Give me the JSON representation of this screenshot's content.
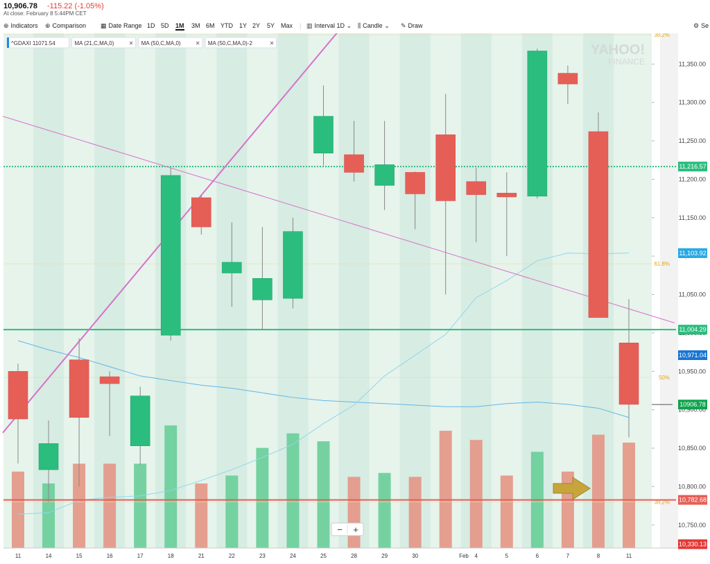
{
  "header": {
    "price": "10,906.78",
    "change": "-115.22 (-1.05%)",
    "close_note": "At close: February 8 5:44PM CET"
  },
  "toolbar": {
    "indicators": "Indicators",
    "comparison": "Comparison",
    "date_range": "Date Range",
    "ranges": [
      "1D",
      "5D",
      "1M",
      "3M",
      "6M",
      "YTD",
      "1Y",
      "2Y",
      "5Y",
      "Max"
    ],
    "selected_range": "1M",
    "interval_label": "Interval",
    "interval_value": "1D",
    "chart_type": "Candle",
    "draw": "Draw",
    "settings": "Se"
  },
  "legend": {
    "ticker": "^GDAXI 11071.54",
    "studies": [
      "MA (21,C,MA,0)",
      "MA (50,C,MA,0)",
      "MA (50,C,MA,0)-2"
    ]
  },
  "watermark": {
    "line1": "YAHOO!",
    "line2": "FINANCE"
  },
  "zoom": {
    "minus": "−",
    "plus": "+"
  },
  "colors": {
    "up": "#2bbd7e",
    "down": "#e55f57",
    "up_vol": "#6fd09c",
    "down_vol": "#e49a8a",
    "diag": "#d771c9",
    "ma1": "#64b5e8",
    "ma2": "#8fd8ea"
  },
  "chart_data": {
    "type": "candlestick",
    "x_labels": [
      "11",
      "14",
      "15",
      "16",
      "17",
      "18",
      "21",
      "22",
      "23",
      "24",
      "25",
      "28",
      "29",
      "30",
      "Feb",
      "4",
      "5",
      "6",
      "7",
      "8",
      "11"
    ],
    "ylim": [
      10720,
      11390
    ],
    "y_ticks": [
      10750,
      10800,
      10850,
      10900,
      10950,
      11000,
      11050,
      11100,
      11150,
      11200,
      11250,
      11300,
      11350
    ],
    "y_tick_labels": [
      "10,750.00",
      "10,800.00",
      "10,850.00",
      "10,900.00",
      "10,950.00",
      "11,000.00",
      "11,050.00",
      "11,100.00",
      "11,150.00",
      "11,200.00",
      "11,250.00",
      "11,300.00",
      "11,350.00"
    ],
    "candles": [
      {
        "x": 0,
        "open": 10950,
        "high": 10960,
        "low": 10830,
        "close": 10888
      },
      {
        "x": 1,
        "open": 10822,
        "high": 10886,
        "low": 10780,
        "close": 10856
      },
      {
        "x": 2,
        "open": 10965,
        "high": 10993,
        "low": 10800,
        "close": 10890
      },
      {
        "x": 3,
        "open": 10943,
        "high": 10950,
        "low": 10866,
        "close": 10934
      },
      {
        "x": 4,
        "open": 10853,
        "high": 10930,
        "low": 10828,
        "close": 10918
      },
      {
        "x": 5,
        "open": 10997,
        "high": 11215,
        "low": 10990,
        "close": 11205
      },
      {
        "x": 6,
        "open": 11176,
        "high": 11180,
        "low": 11128,
        "close": 11138
      },
      {
        "x": 7,
        "open": 11078,
        "high": 11144,
        "low": 11034,
        "close": 11092
      },
      {
        "x": 8,
        "open": 11043,
        "high": 11138,
        "low": 11004,
        "close": 11071
      },
      {
        "x": 9,
        "open": 11045,
        "high": 11150,
        "low": 11032,
        "close": 11132
      },
      {
        "x": 10,
        "open": 11234,
        "high": 11322,
        "low": 11218,
        "close": 11282
      },
      {
        "x": 11,
        "open": 11232,
        "high": 11276,
        "low": 11197,
        "close": 11209
      },
      {
        "x": 12,
        "open": 11192,
        "high": 11276,
        "low": 11160,
        "close": 11219
      },
      {
        "x": 13,
        "open": 11209,
        "high": 11210,
        "low": 11135,
        "close": 11181
      },
      {
        "x": 14,
        "open": 11258,
        "high": 11311,
        "low": 11050,
        "close": 11172
      },
      {
        "x": 15,
        "open": 11197,
        "high": 11215,
        "low": 11118,
        "close": 11180
      },
      {
        "x": 16,
        "open": 11182,
        "high": 11209,
        "low": 11100,
        "close": 11177
      },
      {
        "x": 17,
        "open": 11178,
        "high": 11370,
        "low": 11175,
        "close": 11367
      },
      {
        "x": 18,
        "open": 11338,
        "high": 11348,
        "low": 11298,
        "close": 11324
      },
      {
        "x": 19,
        "open": 11262,
        "high": 11287,
        "low": 11020,
        "close": 11020
      },
      {
        "x": 20,
        "open": 10987,
        "high": 11044,
        "low": 10864,
        "close": 10907
      }
    ],
    "volume_heights": [
      0.58,
      0.49,
      0.64,
      0.64,
      0.64,
      0.93,
      0.49,
      0.55,
      0.76,
      0.87,
      0.81,
      0.54,
      0.57,
      0.54,
      0.89,
      0.82,
      0.55,
      0.73,
      0.58,
      0.86,
      0.8
    ],
    "ma_21": [
      10990,
      10978,
      10968,
      10956,
      10944,
      10938,
      10932,
      10928,
      10922,
      10916,
      10912,
      10910,
      10908,
      10906,
      10904,
      10904,
      10908,
      10910,
      10907,
      10902,
      10890
    ],
    "ma_50": [
      10764,
      10766,
      10782,
      10786,
      10788,
      10795,
      10808,
      10822,
      10838,
      10855,
      10882,
      10906,
      10944,
      10971,
      10998,
      11046,
      11068,
      11094,
      11104,
      11103,
      11104
    ],
    "reference_lines": [
      {
        "value": 11216.57,
        "label": "11,216.57",
        "style": "dotted",
        "color": "#2bbd7e"
      },
      {
        "value": 11004.29,
        "label": "11,004.29",
        "style": "solid",
        "color": "#2bbd7e"
      },
      {
        "value": 10782.68,
        "label": "10,782.68",
        "style": "solid",
        "color": "#e55f57"
      }
    ],
    "price_tags": [
      {
        "value": 11103.92,
        "label": "11,103.92",
        "color": "#29a8e6"
      },
      {
        "value": 10971.04,
        "label": "10,971.04",
        "color": "#1976d2"
      },
      {
        "value": 10906.78,
        "label": "10906.78",
        "color": "#11a34f"
      },
      {
        "value": 10725,
        "label": "10,330.13",
        "color": "#e53935"
      }
    ],
    "fib_levels": [
      {
        "label": "38.2%",
        "value": 11388
      },
      {
        "label": "61.8%",
        "value": 11090
      },
      {
        "label": "50%",
        "value": 10942
      },
      {
        "label": "38.2%",
        "value": 10780
      }
    ],
    "trendlines": [
      {
        "from": [
          -0.5,
          10870
        ],
        "to": [
          18,
          11750
        ],
        "width": 2
      },
      {
        "from": [
          -0.5,
          11282
        ],
        "to": [
          21.5,
          11013
        ],
        "width": 1
      }
    ]
  }
}
